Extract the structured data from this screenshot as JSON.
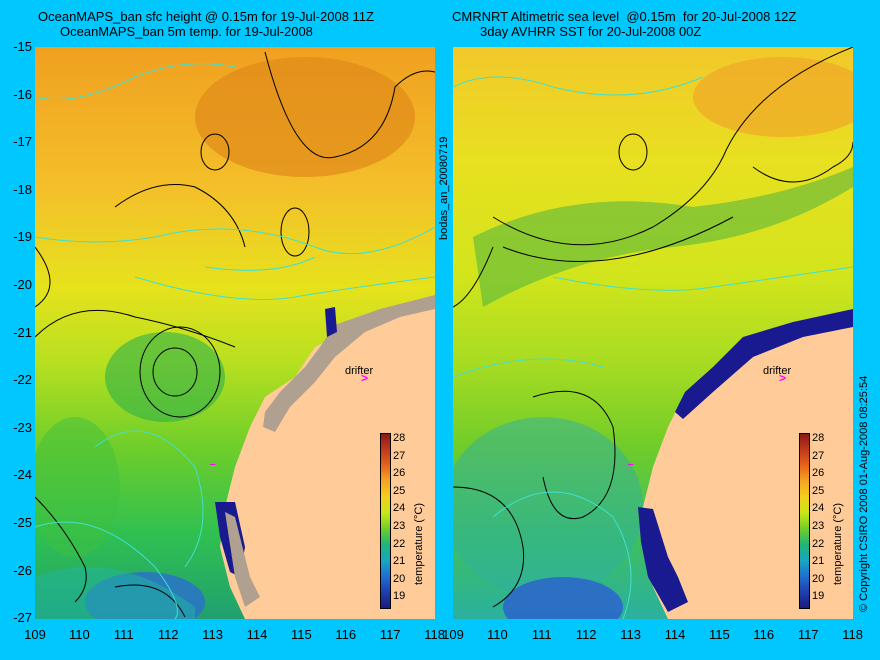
{
  "left_panel": {
    "title_line1": "OceanMAPS_ban sfc height @ 0.15m for 19-Jul-2008 11Z",
    "title_line2": "OceanMAPS_ban 5m temp. for 19-Jul-2008"
  },
  "right_panel": {
    "title_line1": "CMRNRT Altimetric sea level  @0.15m  for 20-Jul-2008 12Z",
    "title_line2": "3day AVHRR SST for 20-Jul-2008 00Z"
  },
  "middle_label": "bodas_an_20080719",
  "copyright": "© Copyright CSIRO 2008   01-Aug-2008 08:25:54",
  "drifter_label": "drifter",
  "drifter_symbol": ">",
  "y_ticks": [
    "-15",
    "-16",
    "-17",
    "-18",
    "-19",
    "-20",
    "-21",
    "-22",
    "-23",
    "-24",
    "-25",
    "-26",
    "-27"
  ],
  "x_ticks": [
    "109",
    "110",
    "111",
    "112",
    "113",
    "114",
    "115",
    "116",
    "117",
    "118"
  ],
  "colorbar": {
    "title": "temperature (°C)",
    "ticks": [
      "28",
      "27",
      "26",
      "25",
      "24",
      "23",
      "22",
      "21",
      "20",
      "19"
    ],
    "colors": [
      "#8b1a1a",
      "#c0391b",
      "#e8651b",
      "#f5a623",
      "#f3d11c",
      "#c8e619",
      "#6fce2a",
      "#1fb57a",
      "#16a7c2",
      "#1f6fd1",
      "#1e3fb0",
      "#1a1a80"
    ]
  },
  "colors": {
    "background": "#00c8ff",
    "land": "#ffcc99",
    "shelf_contour": "#40e0d0",
    "drifter": "#ff00ff"
  }
}
